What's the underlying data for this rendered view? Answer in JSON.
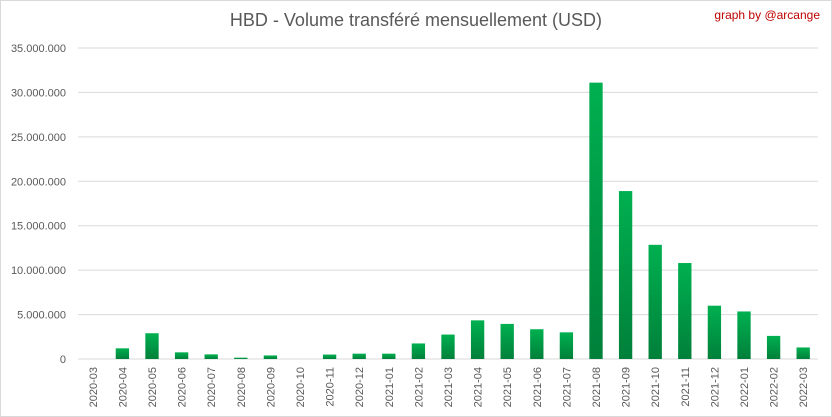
{
  "chart_data": {
    "type": "bar",
    "title": "HBD - Volume transféré mensuellement (USD)",
    "credit": "graph by @arcange",
    "xlabel": "",
    "ylabel": "",
    "ylim": [
      0,
      35000000
    ],
    "yticks": [
      0,
      5000000,
      10000000,
      15000000,
      20000000,
      25000000,
      30000000,
      35000000
    ],
    "ytick_labels": [
      "0",
      "5.000.000",
      "10.000.000",
      "15.000.000",
      "20.000.000",
      "25.000.000",
      "30.000.000",
      "35.000.000"
    ],
    "grid": true,
    "legend": "none",
    "bar_color_light": "#00b050",
    "bar_color_dark": "#00803a",
    "categories": [
      "2020-03",
      "2020-04",
      "2020-05",
      "2020-06",
      "2020-07",
      "2020-08",
      "2020-09",
      "2020-10",
      "2020-11",
      "2020-12",
      "2021-01",
      "2021-02",
      "2021-03",
      "2021-04",
      "2021-05",
      "2021-06",
      "2021-07",
      "2021-08",
      "2021-09",
      "2021-10",
      "2021-11",
      "2021-12",
      "2022-01",
      "2022-02",
      "2022-03"
    ],
    "values": [
      0,
      1200000,
      2900000,
      750000,
      520000,
      150000,
      400000,
      0,
      500000,
      600000,
      600000,
      1750000,
      2750000,
      4350000,
      3950000,
      3350000,
      3000000,
      31100000,
      18900000,
      12850000,
      10800000,
      6000000,
      5350000,
      2600000,
      1300000
    ]
  }
}
